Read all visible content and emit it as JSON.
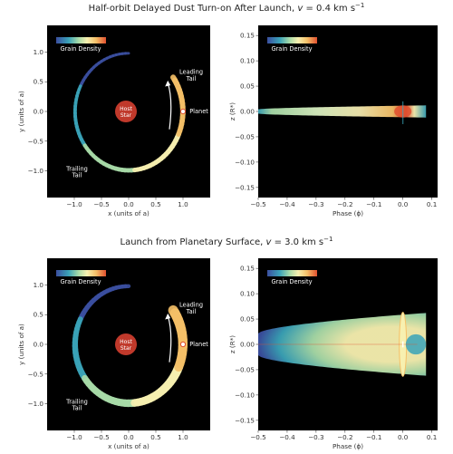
{
  "figure": {
    "rows": [
      {
        "title": "Half-orbit Delayed Dust Turn-on After Launch, v = 0.4 km s⁻¹",
        "title_parts": {
          "pre": "Half-orbit Delayed Dust Turn-on After Launch, ",
          "var": "v",
          "post": " = 0.4 km s",
          "sup": "−1"
        },
        "orbital_panel": {
          "colorbar_label": "Grain Density",
          "host_star_label": [
            "Host",
            "Star"
          ],
          "planet_label": "Planet",
          "leading_tail_label": [
            "Leading",
            "Tail"
          ],
          "trailing_tail_label": [
            "Trailing",
            "Tail"
          ]
        },
        "phase_panel": {
          "colorbar_label": "Grain Density"
        }
      },
      {
        "title": "Launch from Planetary Surface, v = 3.0 km s⁻¹",
        "title_parts": {
          "pre": "Launch from Planetary Surface, ",
          "var": "v",
          "post": " = 3.0 km s",
          "sup": "−1"
        },
        "orbital_panel": {
          "colorbar_label": "Grain Density",
          "host_star_label": [
            "Host",
            "Star"
          ],
          "planet_label": "Planet",
          "leading_tail_label": [
            "Leading",
            "Tail"
          ],
          "trailing_tail_label": [
            "Trailing",
            "Tail"
          ]
        },
        "phase_panel": {
          "colorbar_label": "Grain Density"
        }
      }
    ],
    "colors": {
      "panel_bg": "#000000",
      "star": "#c0392b",
      "colormap": [
        "#3b4fa0",
        "#3aa3b8",
        "#a8dba8",
        "#f7f0b0",
        "#f5c068",
        "#e0502f"
      ]
    }
  },
  "chart_data": [
    {
      "type": "heatmap",
      "panel": "top-left",
      "xlabel": "x (units of a)",
      "ylabel": "y (units of a)",
      "xlim": [
        -1.5,
        1.5
      ],
      "ylim": [
        -1.45,
        1.45
      ],
      "xticks": [
        "−1.0",
        "−0.5",
        "0.0",
        "0.5",
        "1.0"
      ],
      "yticks": [
        "1.0",
        "0.5",
        "0.0",
        "−0.5",
        "−1.0"
      ],
      "colorbar": "Grain Density",
      "tail_arc_deg": {
        "from": -270,
        "to": 35
      },
      "spread": 0.05
    },
    {
      "type": "heatmap",
      "panel": "top-right",
      "xlabel": "Phase (ϕ)",
      "ylabel": "z (R*)",
      "xlim": [
        -0.5,
        0.12
      ],
      "ylim": [
        -0.17,
        0.17
      ],
      "xticks": [
        "−0.5",
        "−0.4",
        "−0.3",
        "−0.2",
        "−0.1",
        "0.0",
        "0.1"
      ],
      "yticks": [
        "0.15",
        "0.10",
        "0.05",
        "0.00",
        "−0.05",
        "−0.10",
        "−0.15"
      ],
      "colorbar": "Grain Density",
      "z_halfwidth_max": 0.012
    },
    {
      "type": "heatmap",
      "panel": "bottom-left",
      "xlabel": "x (units of a)",
      "ylabel": "y (units of a)",
      "xlim": [
        -1.5,
        1.5
      ],
      "ylim": [
        -1.45,
        1.45
      ],
      "xticks": [
        "−1.0",
        "−0.5",
        "0.0",
        "0.5",
        "1.0"
      ],
      "yticks": [
        "1.0",
        "0.5",
        "0.0",
        "−0.5",
        "−1.0"
      ],
      "colorbar": "Grain Density",
      "tail_arc_deg": {
        "from": -270,
        "to": 35
      },
      "spread": 0.1
    },
    {
      "type": "heatmap",
      "panel": "bottom-right",
      "xlabel": "Phase (ϕ)",
      "ylabel": "z (R*)",
      "xlim": [
        -0.5,
        0.12
      ],
      "ylim": [
        -0.17,
        0.17
      ],
      "xticks": [
        "−0.5",
        "−0.4",
        "−0.3",
        "−0.2",
        "−0.1",
        "0.0",
        "0.1"
      ],
      "yticks": [
        "0.15",
        "0.10",
        "0.05",
        "0.00",
        "−0.05",
        "−0.10",
        "−0.15"
      ],
      "colorbar": "Grain Density",
      "z_halfwidth_max": 0.062
    }
  ]
}
